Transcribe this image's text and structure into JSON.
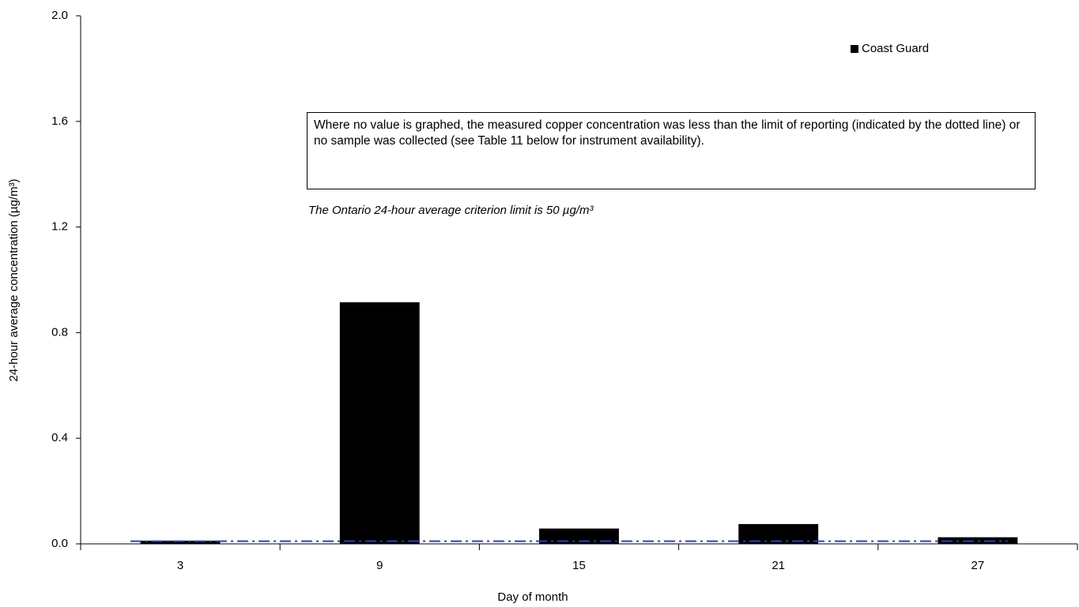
{
  "chart_data": {
    "type": "bar",
    "x_label": "Day of month",
    "y_label": "24-hour average concentration (µg/m³)",
    "categories": [
      "3",
      "9",
      "15",
      "21",
      "27"
    ],
    "series": [
      {
        "name": "Coast Guard",
        "color": "#000000",
        "values": [
          0.012,
          0.915,
          0.058,
          0.075,
          0.025
        ]
      }
    ],
    "ylim": [
      0,
      2
    ],
    "yticks": [
      {
        "value": 0,
        "label": "0.0"
      },
      0.4,
      0.8,
      1.2,
      1.6,
      {
        "value": 2,
        "label": "2.0"
      }
    ],
    "reference_line": {
      "value": 0.01,
      "color": "#2a3fd0"
    },
    "annotations": [
      "Where no value is graphed, the measured copper concentration was less than the limit of reporting (indicated by the dotted line) or no sample was collected (see Table 11 below for instrument availability).",
      "The Ontario 24-hour average criterion limit is 50 µg/m³"
    ],
    "legend_position": "upper right"
  }
}
